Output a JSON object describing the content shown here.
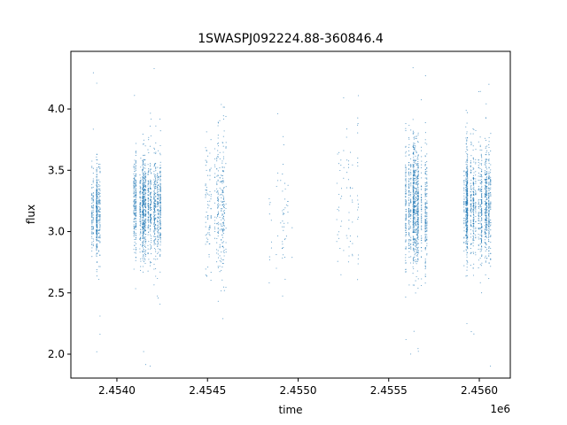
{
  "chart_data": {
    "type": "scatter",
    "title": "1SWASPJ092224.88-360846.4",
    "xlabel": "time",
    "ylabel": "flux",
    "x_offset_label": "1e6",
    "xlim": [
      2453746,
      2456171
    ],
    "ylim": [
      1.805,
      4.47
    ],
    "xticks": [
      2454000,
      2454500,
      2455000,
      2455500,
      2456000
    ],
    "xtick_labels": [
      "2.4540",
      "2.4545",
      "2.4550",
      "2.4555",
      "2.4560"
    ],
    "yticks": [
      2.0,
      2.5,
      3.0,
      3.5,
      4.0
    ],
    "ytick_labels": [
      "2.0",
      "2.5",
      "3.0",
      "3.5",
      "4.0"
    ],
    "grid": false,
    "marker_color": "#1f77b4",
    "observing_seasons": [
      {
        "t_start": 2453853,
        "t_end": 2453907,
        "n_points": 500,
        "flux_mean": 3.15,
        "flux_sd": 0.18
      },
      {
        "t_start": 2454088,
        "t_end": 2454244,
        "n_points": 1400,
        "flux_mean": 3.2,
        "flux_sd": 0.2
      },
      {
        "t_start": 2454479,
        "t_end": 2454611,
        "n_points": 350,
        "flux_mean": 3.2,
        "flux_sd": 0.3
      },
      {
        "t_start": 2454841,
        "t_end": 2454992,
        "n_points": 60,
        "flux_mean": 3.1,
        "flux_sd": 0.3
      },
      {
        "t_start": 2455212,
        "t_end": 2455334,
        "n_points": 80,
        "flux_mean": 3.2,
        "flux_sd": 0.35
      },
      {
        "t_start": 2455593,
        "t_end": 2455711,
        "n_points": 1100,
        "flux_mean": 3.2,
        "flux_sd": 0.25
      },
      {
        "t_start": 2455896,
        "t_end": 2456068,
        "n_points": 1300,
        "flux_mean": 3.2,
        "flux_sd": 0.22
      }
    ]
  }
}
